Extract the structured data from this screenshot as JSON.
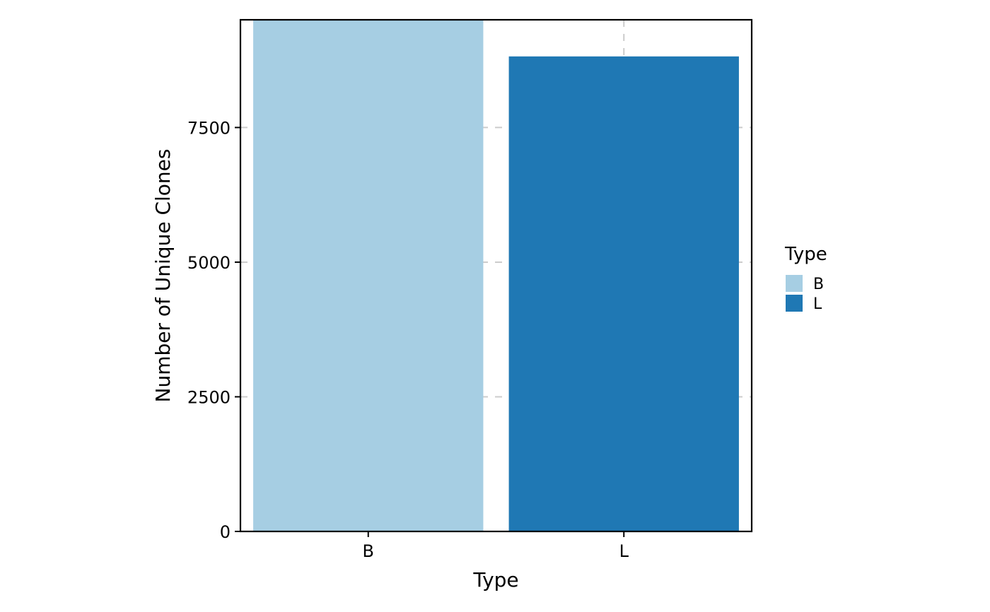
{
  "chart_data": {
    "type": "bar",
    "title": "",
    "xlabel": "Type",
    "ylabel": "Number of Unique Clones",
    "categories": [
      "B",
      "L"
    ],
    "values": [
      9700,
      8820
    ],
    "colors": [
      "#a6cee3",
      "#1f78b4"
    ],
    "ylim": [
      0,
      9500
    ],
    "yticks": [
      0,
      2500,
      5000,
      7500
    ],
    "grid": {
      "major_lines": "dashed",
      "color": "#cccccc"
    },
    "legend": {
      "title": "Type",
      "placement": "right",
      "entries": [
        {
          "label": "B",
          "color": "#a6cee3"
        },
        {
          "label": "L",
          "color": "#1f78b4"
        }
      ]
    }
  }
}
